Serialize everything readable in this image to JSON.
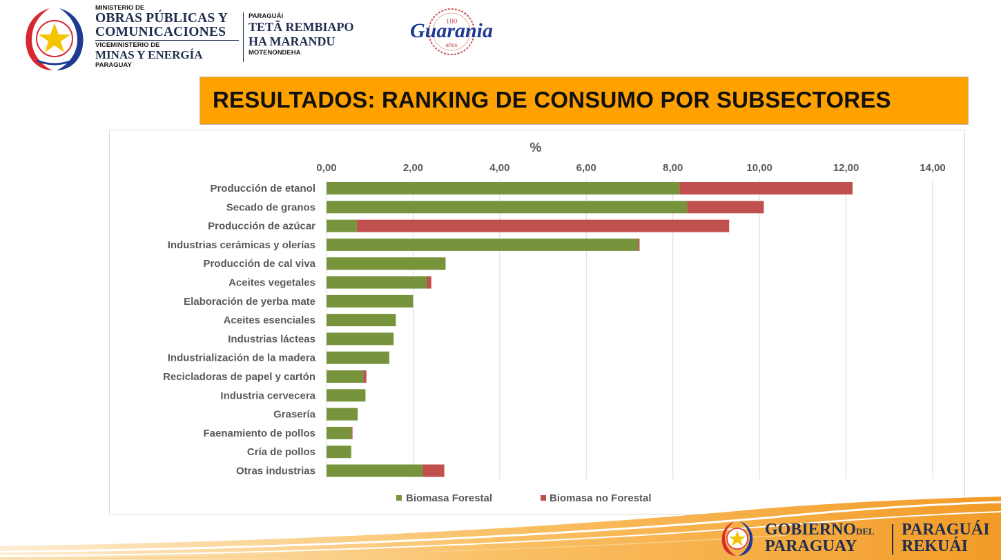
{
  "header": {
    "mopc": {
      "line1": "MINISTERIO DE",
      "line2": "OBRAS PÚBLICAS Y",
      "line3": "COMUNICACIONES",
      "line4": "VICEMINISTERIO DE",
      "line5": "MINAS Y ENERGÍA",
      "line6": "PARAGUAY"
    },
    "tete": {
      "line1": "PARAGUÁI",
      "line2": "TETÃ REMBIAPO",
      "line3": "HA MARANDU",
      "line4": "MOTENONDEHA"
    },
    "guarania": {
      "number": "100",
      "word": "Guarania",
      "years": "años"
    }
  },
  "title": "RESULTADOS: RANKING DE CONSUMO POR SUBSECTORES",
  "colors": {
    "banner": "#ffa200",
    "forestal": "#77933c",
    "no_forestal": "#c0504d",
    "navy": "#1f2d4e"
  },
  "chart_data": {
    "type": "bar",
    "orientation": "horizontal",
    "stacked": true,
    "title": "%",
    "xlim": [
      0,
      14
    ],
    "xticks": [
      "0,00",
      "2,00",
      "4,00",
      "6,00",
      "8,00",
      "10,00",
      "12,00",
      "14,00"
    ],
    "xtick_values": [
      0,
      2,
      4,
      6,
      8,
      10,
      12,
      14
    ],
    "grid": true,
    "legend_position": "bottom",
    "categories": [
      "Producción de etanol",
      "Secado de granos",
      "Producción de azúcar",
      "Industrias cerámicas y olerías",
      "Producción de cal viva",
      "Aceites vegetales",
      "Elaboración de yerba mate",
      "Aceites esenciales",
      "Industrias lácteas",
      "Industrialización de la madera",
      "Recicladoras de papel y cartón",
      "Industria cervecera",
      "Grasería",
      "Faenamiento de pollos",
      "Cría de pollos",
      "Otras industrias"
    ],
    "series": [
      {
        "name": "Biomasa Forestal",
        "values": [
          8.15,
          8.33,
          0.7,
          7.2,
          2.75,
          2.32,
          2.0,
          1.6,
          1.55,
          1.45,
          0.85,
          0.9,
          0.72,
          0.58,
          0.57,
          2.22
        ]
      },
      {
        "name": "Biomasa no Forestal",
        "values": [
          4.0,
          1.77,
          8.6,
          0.03,
          0.0,
          0.1,
          0.0,
          0.0,
          0.0,
          0.0,
          0.07,
          0.0,
          0.0,
          0.02,
          0.0,
          0.5
        ]
      }
    ]
  },
  "footer": {
    "gobierno": "GOBIERNO",
    "del": "DEL",
    "paraguay": "PARAGUAY",
    "paraguai": "PARAGUÁI",
    "rekuai": "REKUÁI"
  }
}
